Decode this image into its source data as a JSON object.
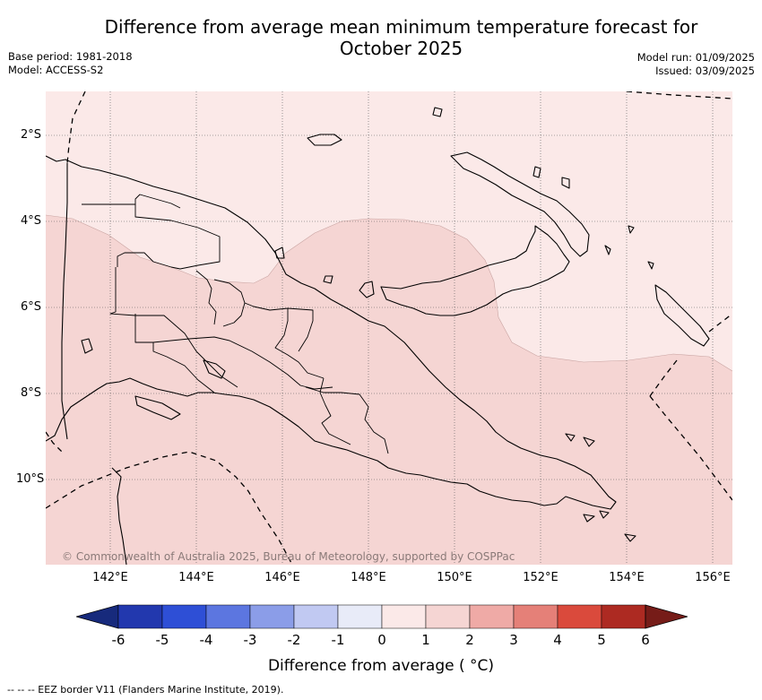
{
  "title": "Difference from average mean minimum temperature forecast for October 2025",
  "base_period": "Base period: 1981-2018",
  "model": "Model: ACCESS-S2",
  "model_run": "Model run: 01/09/2025",
  "issued": "Issued: 03/09/2025",
  "map": {
    "lat_labels": [
      "2°S",
      "4°S",
      "6°S",
      "8°S",
      "10°S"
    ],
    "lon_labels": [
      "142°E",
      "144°E",
      "146°E",
      "148°E",
      "150°E",
      "152°E",
      "154°E",
      "156°E"
    ],
    "credit": "© Commonwealth of Australia 2025, Bureau of Meteorology, supported by COSPPac",
    "field_colors": {
      "anomaly_0_to_1": "#fbe9e8",
      "anomaly_1_to_2": "#f5d5d3"
    }
  },
  "colorbar": {
    "ticks": [
      "-6",
      "-5",
      "-4",
      "-3",
      "-2",
      "-1",
      "0",
      "1",
      "2",
      "3",
      "4",
      "5",
      "6"
    ],
    "colors": [
      "#172a7c",
      "#2238ae",
      "#2e4fd6",
      "#5c76e0",
      "#8b9de8",
      "#c1c9f2",
      "#e8ebf8",
      "#fbe9e8",
      "#f5d5d3",
      "#efaaa6",
      "#e58078",
      "#da4a3c",
      "#ad2a22",
      "#761c18"
    ],
    "label": "Difference from average ( °C)"
  },
  "legend": {
    "eez": "--  --  -- EEZ border V11 (Flanders Marine Institute, 2019)."
  }
}
